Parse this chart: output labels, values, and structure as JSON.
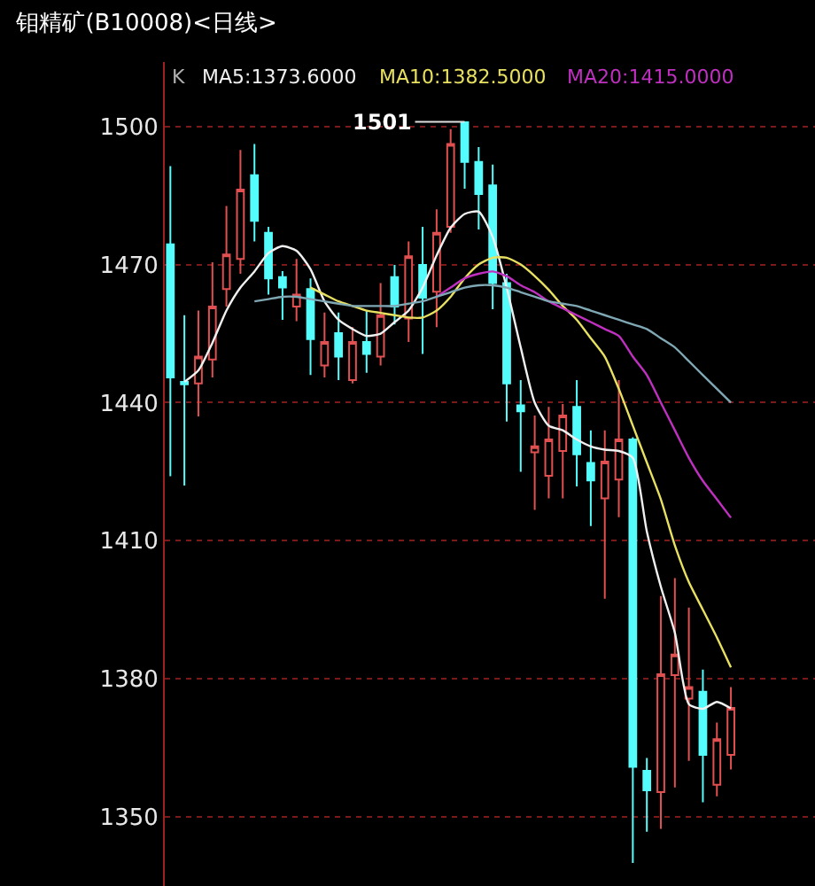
{
  "chart_data": {
    "type": "candlestick",
    "title": "钼精矿(B10008)<日线>",
    "categories": [
      null,
      null,
      null,
      null,
      null,
      null,
      null,
      null,
      null,
      null,
      null,
      null,
      null,
      null,
      null,
      null,
      null,
      null,
      null,
      null,
      null,
      null,
      null,
      null,
      null,
      null,
      null,
      null,
      null,
      null,
      null,
      null,
      null,
      null,
      null,
      null,
      null,
      null,
      null,
      null,
      null
    ],
    "ohlc": [
      [
        1474.4,
        1491.4,
        1424,
        1445.5
      ],
      [
        1444.5,
        1459,
        1422,
        1444
      ],
      [
        1444.2,
        1460,
        1437,
        1450
      ],
      [
        1449.4,
        1470.5,
        1445.5,
        1460.9
      ],
      [
        1464.7,
        1482.7,
        1460.9,
        1472.2
      ],
      [
        1471.2,
        1494.9,
        1468,
        1486.3
      ],
      [
        1489.4,
        1496.2,
        1475,
        1479.5
      ],
      [
        1476.9,
        1478.2,
        1463.5,
        1467
      ],
      [
        1467.3,
        1468.6,
        1458,
        1465
      ],
      [
        1460.9,
        1471.2,
        1457.7,
        1463.5
      ],
      [
        1464.7,
        1467,
        1446,
        1453.8
      ],
      [
        1448.1,
        1459.6,
        1445.5,
        1453.2
      ],
      [
        1455.1,
        1459.6,
        1444.9,
        1450
      ],
      [
        1444.9,
        1456.4,
        1444.2,
        1453.2
      ],
      [
        1453.2,
        1460,
        1446.5,
        1450.6
      ],
      [
        1450,
        1466,
        1448.1,
        1459
      ],
      [
        1467.3,
        1469.9,
        1457,
        1460.9
      ],
      [
        1458.3,
        1475,
        1453.2,
        1471.8
      ],
      [
        1469.9,
        1478.2,
        1450.6,
        1462.8
      ],
      [
        1464.1,
        1482,
        1456.4,
        1476.9
      ],
      [
        1478.2,
        1499.4,
        1476.9,
        1496.2
      ],
      [
        1500.9,
        1501,
        1486.5,
        1492.3
      ],
      [
        1492.3,
        1495.5,
        1477.6,
        1485.3
      ],
      [
        1487.2,
        1491.7,
        1460.3,
        1466
      ],
      [
        1466,
        1468,
        1435.9,
        1444.2
      ],
      [
        1439.4,
        1444.9,
        1425,
        1438.1
      ],
      [
        1429.2,
        1437.2,
        1416.7,
        1430.5
      ],
      [
        1424.1,
        1439.1,
        1419.2,
        1432
      ],
      [
        1429.5,
        1439.7,
        1419.2,
        1437.2
      ],
      [
        1439.1,
        1444.9,
        1421.8,
        1428.8
      ],
      [
        1426.9,
        1434,
        1413.2,
        1423.1
      ],
      [
        1419.2,
        1434,
        1397.4,
        1427.2
      ],
      [
        1423.3,
        1444.9,
        1415.1,
        1432
      ],
      [
        1432,
        1432.5,
        1340,
        1360.9
      ],
      [
        1360,
        1362.8,
        1346.8,
        1355.8
      ],
      [
        1355.4,
        1398,
        1347.4,
        1381
      ],
      [
        1380.8,
        1401.9,
        1356.4,
        1385.3
      ],
      [
        1375.7,
        1395.5,
        1362.2,
        1378.2
      ],
      [
        1377.2,
        1382,
        1353.2,
        1363.5
      ],
      [
        1357,
        1370.5,
        1354.5,
        1366.9
      ],
      [
        1363.5,
        1378.2,
        1360.3,
        1373.7
      ]
    ],
    "colors": [
      "#54fcfc",
      "#54fcfc",
      "#e05050",
      "#e05050",
      "#e05050",
      "#e05050",
      "#54fcfc",
      "#54fcfc",
      "#54fcfc",
      "#e05050",
      "#54fcfc",
      "#e05050",
      "#54fcfc",
      "#e05050",
      "#54fcfc",
      "#e05050",
      "#54fcfc",
      "#e05050",
      "#54fcfc",
      "#e05050",
      "#e05050",
      "#54fcfc",
      "#54fcfc",
      "#54fcfc",
      "#54fcfc",
      "#54fcfc",
      "#e05050",
      "#e05050",
      "#e05050",
      "#54fcfc",
      "#54fcfc",
      "#e05050",
      "#e05050",
      "#54fcfc",
      "#54fcfc",
      "#e05050",
      "#e05050",
      "#e05050",
      "#54fcfc",
      "#e05050",
      "#e05050"
    ],
    "series": [
      {
        "name": "MA5:1373.6000",
        "type": "line",
        "color": "#f0f0f0",
        "values": [
          null,
          1444.5,
          1447,
          1453,
          1460,
          1465,
          1468.5,
          1472.5,
          1474,
          1473,
          1469,
          1462,
          1458,
          1456,
          1454.5,
          1455,
          1457.5,
          1460,
          1465,
          1472,
          1478,
          1481,
          1481.5,
          1476,
          1465,
          1452,
          1440,
          1435,
          1434,
          1432,
          1430.5,
          1429.8,
          1429.5,
          1428,
          1412,
          1400,
          1390,
          1374.5,
          1373.5,
          1375,
          1373.6
        ]
      },
      {
        "name": "MA10:1382.5000",
        "type": "line",
        "color": "#e8e060",
        "values": [
          null,
          null,
          null,
          null,
          null,
          null,
          null,
          null,
          null,
          null,
          1465,
          1463.5,
          1462,
          1461,
          1460,
          1459.5,
          1459,
          1458.5,
          1458.5,
          1460,
          1463,
          1467,
          1470,
          1471.5,
          1471.5,
          1470,
          1467.5,
          1464.5,
          1461,
          1458,
          1454,
          1450,
          1443,
          1435,
          1427,
          1419,
          1409,
          1401,
          1395,
          1389,
          1382.5
        ]
      },
      {
        "name": "MA20:1415.0000",
        "type": "line",
        "color": "#c030c0",
        "values": [
          null,
          null,
          null,
          null,
          null,
          null,
          null,
          null,
          null,
          null,
          null,
          null,
          null,
          null,
          null,
          null,
          null,
          null,
          null,
          1463,
          1465,
          1467,
          1468,
          1468.5,
          1467.5,
          1465.5,
          1464,
          1462,
          1460.5,
          1459,
          1457.5,
          1456,
          1454.5,
          1450,
          1446,
          1440,
          1434,
          1428,
          1423,
          1419,
          1415
        ]
      },
      {
        "type": "line",
        "color": "#7fa8b4",
        "values": [
          null,
          null,
          null,
          null,
          null,
          null,
          1462,
          1462.5,
          1463,
          1463,
          1462.5,
          1462,
          1461.5,
          1461,
          1461,
          1461,
          1461,
          1461.5,
          1462,
          1463,
          1464,
          1465,
          1465.5,
          1465.5,
          1465,
          1464,
          1463,
          1462,
          1461.5,
          1461,
          1460,
          1459,
          1458,
          1457,
          1456,
          1454,
          1452,
          1449,
          1446,
          1443,
          1440
        ]
      }
    ],
    "annotations": [
      "K",
      "1501"
    ],
    "ylim": [
      1335,
      1514
    ],
    "yticks": [
      1350,
      1380,
      1410,
      1440,
      1470,
      1500
    ],
    "grid": "y",
    "legend": false,
    "tick_labels": "y",
    "line_style": "solid",
    "marker": "none"
  }
}
